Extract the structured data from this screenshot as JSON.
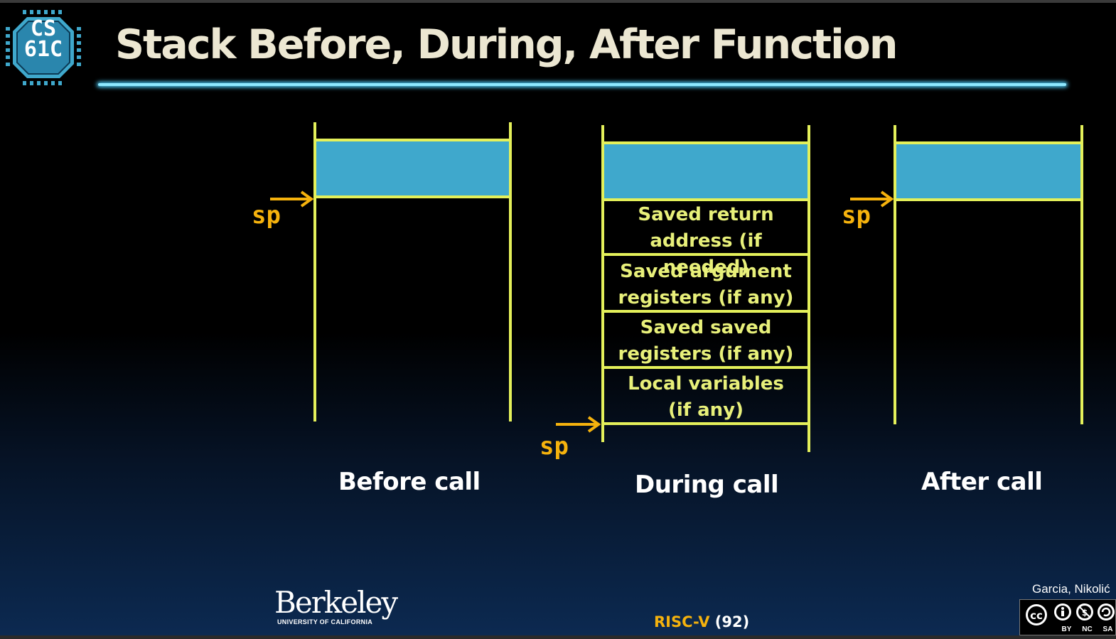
{
  "slide": {
    "logo_text_line1": "CS",
    "logo_text_line2": "61C",
    "title": "Stack Before, During, After Function"
  },
  "diagram": {
    "sp_label": "sp",
    "frame_entries": [
      {
        "line1": "Saved return",
        "line2": "address (if needed)"
      },
      {
        "line1": "Saved argument",
        "line2": "registers (if any)"
      },
      {
        "line1": "Saved saved",
        "line2": "registers (if any)"
      },
      {
        "line1": "Local variables",
        "line2": "(if any)"
      }
    ],
    "captions": {
      "before": "Before call",
      "during": "During call",
      "after": "After call"
    },
    "colors": {
      "outline": "#e4f05a",
      "existing_stack": "#3fa8cc",
      "pointer": "#f5b20d"
    }
  },
  "footer": {
    "logo_word": "Berkeley",
    "logo_sub": "UNIVERSITY OF CALIFORNIA",
    "lecture_label": "RISC-V",
    "slide_number": "(92)",
    "authors": "Garcia, Nikolić",
    "license_by": "BY",
    "license_nc": "NC",
    "license_sa": "SA"
  }
}
